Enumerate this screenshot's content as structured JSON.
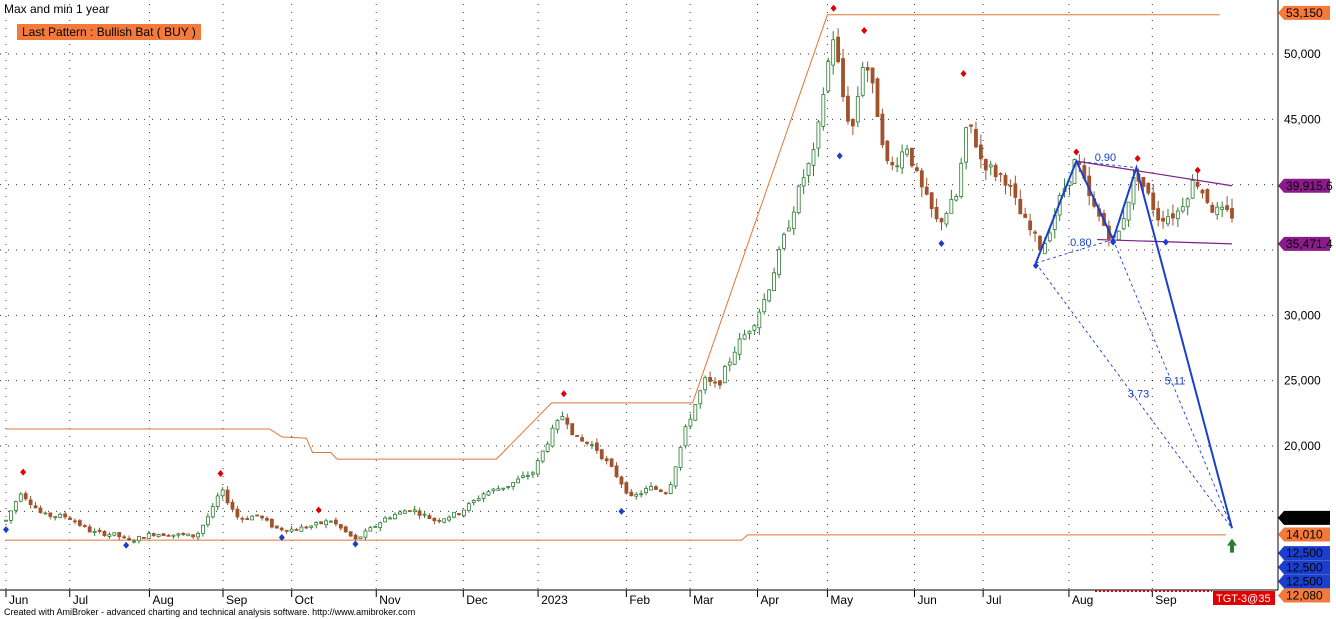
{
  "title": "Max and min 1 year",
  "pattern_label": "Last Pattern : Bullish Bat ( BUY )",
  "credit": "Created with AmiBroker - advanced charting and technical analysis software. http://www.amibroker.com",
  "colors": {
    "background": "#ffffff",
    "candle_up": "#2e7d32",
    "candle_down": "#a0522d",
    "resistance": "#e0753a",
    "pattern": "#1a3fcc",
    "channel": "#7b1f8a",
    "pivot_high": "#e00000",
    "pivot_low": "#1a3fcc",
    "label_orange": "#f47a3c",
    "label_purple": "#8b1a8b",
    "label_blue": "#1a3fcc",
    "label_black": "#000000",
    "label_red": "#e00000"
  },
  "chart_data": {
    "type": "candlestick",
    "ylim": [
      11000,
      54000
    ],
    "grid": true,
    "y_ticks": [
      15000,
      20000,
      25000,
      30000,
      35000,
      40000,
      45000,
      50000
    ],
    "y_tick_labels": [
      "",
      "20,000",
      "25,000",
      "30,000",
      "",
      "",
      "45,000",
      "50,000"
    ],
    "x_ticks": [
      {
        "label": "Jun",
        "t": 0.0
      },
      {
        "label": "Jul",
        "t": 0.052
      },
      {
        "label": "Aug",
        "t": 0.117
      },
      {
        "label": "Sep",
        "t": 0.177
      },
      {
        "label": "Oct",
        "t": 0.233
      },
      {
        "label": "Nov",
        "t": 0.302
      },
      {
        "label": "Dec",
        "t": 0.373
      },
      {
        "label": "2023",
        "t": 0.434
      },
      {
        "label": "Feb",
        "t": 0.506
      },
      {
        "label": "Mar",
        "t": 0.558
      },
      {
        "label": "Apr",
        "t": 0.613
      },
      {
        "label": "May",
        "t": 0.67
      },
      {
        "label": "Jun",
        "t": 0.741
      },
      {
        "label": "Jul",
        "t": 0.797
      },
      {
        "label": "Aug",
        "t": 0.867
      },
      {
        "label": "Sep",
        "t": 0.935
      }
    ],
    "price_path": [
      [
        0.0,
        14300
      ],
      [
        0.012,
        16500
      ],
      [
        0.03,
        14700
      ],
      [
        0.05,
        14600
      ],
      [
        0.07,
        13400
      ],
      [
        0.09,
        13200
      ],
      [
        0.1,
        12700
      ],
      [
        0.12,
        13300
      ],
      [
        0.14,
        13200
      ],
      [
        0.155,
        13100
      ],
      [
        0.17,
        15400
      ],
      [
        0.175,
        16700
      ],
      [
        0.19,
        14400
      ],
      [
        0.205,
        14700
      ],
      [
        0.22,
        13700
      ],
      [
        0.235,
        13600
      ],
      [
        0.25,
        13900
      ],
      [
        0.265,
        14300
      ],
      [
        0.285,
        12800
      ],
      [
        0.31,
        14500
      ],
      [
        0.33,
        15200
      ],
      [
        0.35,
        14300
      ],
      [
        0.37,
        14900
      ],
      [
        0.39,
        16400
      ],
      [
        0.41,
        17000
      ],
      [
        0.43,
        18000
      ],
      [
        0.445,
        21000
      ],
      [
        0.455,
        22500
      ],
      [
        0.465,
        20500
      ],
      [
        0.48,
        20000
      ],
      [
        0.5,
        17500
      ],
      [
        0.51,
        16000
      ],
      [
        0.525,
        16800
      ],
      [
        0.54,
        16500
      ],
      [
        0.555,
        21500
      ],
      [
        0.57,
        25000
      ],
      [
        0.58,
        24500
      ],
      [
        0.595,
        27500
      ],
      [
        0.61,
        29500
      ],
      [
        0.62,
        31500
      ],
      [
        0.635,
        36000
      ],
      [
        0.65,
        40500
      ],
      [
        0.66,
        42500
      ],
      [
        0.668,
        48000
      ],
      [
        0.675,
        51500
      ],
      [
        0.682,
        47000
      ],
      [
        0.69,
        44000
      ],
      [
        0.7,
        50000
      ],
      [
        0.71,
        46000
      ],
      [
        0.72,
        41000
      ],
      [
        0.735,
        43000
      ],
      [
        0.745,
        40000
      ],
      [
        0.76,
        37000
      ],
      [
        0.775,
        39000
      ],
      [
        0.785,
        45000
      ],
      [
        0.795,
        42000
      ],
      [
        0.805,
        41000
      ],
      [
        0.815,
        40500
      ],
      [
        0.828,
        37600
      ],
      [
        0.845,
        35000
      ],
      [
        0.86,
        39000
      ],
      [
        0.873,
        42000
      ],
      [
        0.885,
        38500
      ],
      [
        0.905,
        35500
      ],
      [
        0.922,
        41000
      ],
      [
        0.94,
        37500
      ],
      [
        0.955,
        37800
      ],
      [
        0.97,
        40500
      ],
      [
        0.985,
        38000
      ],
      [
        1.0,
        37700
      ]
    ],
    "resistance_line": [
      [
        0.0,
        21300
      ],
      [
        0.215,
        21300
      ],
      [
        0.225,
        20700
      ],
      [
        0.245,
        20600
      ],
      [
        0.25,
        19500
      ],
      [
        0.265,
        19500
      ],
      [
        0.27,
        19000
      ],
      [
        0.4,
        19000
      ],
      [
        0.445,
        23300
      ],
      [
        0.56,
        23300
      ],
      [
        0.67,
        53000
      ],
      [
        0.99,
        53000
      ]
    ],
    "support_line": [
      [
        0.0,
        12800
      ],
      [
        0.6,
        12800
      ],
      [
        0.605,
        13200
      ],
      [
        0.995,
        13200
      ]
    ],
    "pivot_highs": [
      {
        "t": 0.014,
        "v": 18000
      },
      {
        "t": 0.175,
        "v": 17900
      },
      {
        "t": 0.255,
        "v": 15100
      },
      {
        "t": 0.455,
        "v": 24000
      },
      {
        "t": 0.675,
        "v": 53500
      },
      {
        "t": 0.7,
        "v": 51800
      },
      {
        "t": 0.781,
        "v": 48500
      },
      {
        "t": 0.873,
        "v": 42500
      },
      {
        "t": 0.923,
        "v": 42000
      },
      {
        "t": 0.972,
        "v": 41100
      }
    ],
    "pivot_lows": [
      {
        "t": 0.0,
        "v": 13600
      },
      {
        "t": 0.098,
        "v": 12400
      },
      {
        "t": 0.225,
        "v": 13000
      },
      {
        "t": 0.285,
        "v": 12500
      },
      {
        "t": 0.502,
        "v": 15000
      },
      {
        "t": 0.68,
        "v": 42200
      },
      {
        "t": 0.763,
        "v": 35500
      },
      {
        "t": 0.84,
        "v": 33800
      },
      {
        "t": 0.903,
        "v": 35600
      },
      {
        "t": 0.946,
        "v": 35600
      }
    ],
    "pattern_line": [
      [
        0.84,
        34000
      ],
      [
        0.873,
        41800
      ],
      [
        0.903,
        35800
      ],
      [
        0.922,
        41300
      ],
      [
        1.0,
        13700
      ]
    ],
    "pattern_dashed": [
      [
        [
          0.84,
          34000
        ],
        [
          1.0,
          13700
        ]
      ],
      [
        [
          0.903,
          35800
        ],
        [
          1.0,
          13700
        ]
      ],
      [
        [
          0.873,
          41800
        ],
        [
          0.922,
          41300
        ]
      ],
      [
        [
          0.84,
          34000
        ],
        [
          0.903,
          35800
        ]
      ]
    ],
    "channel_upper": [
      [
        0.873,
        41800
      ],
      [
        1.0,
        39915.6
      ]
    ],
    "channel_lower": [
      [
        0.89,
        35800
      ],
      [
        1.0,
        35471.4
      ]
    ],
    "pattern_labels": [
      {
        "text": "0.90",
        "t": 0.888,
        "v": 41800
      },
      {
        "text": "0.80",
        "t": 0.868,
        "v": 35300
      },
      {
        "text": "3.73",
        "t": 0.915,
        "v": 23700
      },
      {
        "text": "5.11",
        "t": 0.945,
        "v": 24700
      }
    ],
    "target_marker": {
      "t": 1.0,
      "v": 12300
    },
    "price_tags": [
      {
        "text": "53,150",
        "v": 53150,
        "color": "label_orange",
        "text_color": "#000000"
      },
      {
        "text": "39,915.6",
        "v": 39915.6,
        "color": "label_purple",
        "text_color": "#ffffff"
      },
      {
        "text": "35,471.4",
        "v": 35471.4,
        "color": "label_purple",
        "text_color": "#ffffff"
      },
      {
        "text": "14,010",
        "v": 14500,
        "color": "label_black",
        "text_color": "#ffffff"
      },
      {
        "text": "14,010",
        "v": 13230,
        "color": "label_orange",
        "text_color": "#000000"
      },
      {
        "text": "12,500",
        "v": 11800,
        "color": "label_blue",
        "text_color": "#ffffff"
      },
      {
        "text": "12,500",
        "v": 10720,
        "color": "label_blue",
        "text_color": "#ffffff"
      },
      {
        "text": "12,500",
        "v": 9640,
        "color": "label_blue",
        "text_color": "#ffffff"
      },
      {
        "text": "12,080",
        "v": 8560,
        "color": "label_orange",
        "text_color": "#000000"
      }
    ],
    "bottom_tag": {
      "text": "TGT-3@35",
      "color": "label_red"
    }
  }
}
